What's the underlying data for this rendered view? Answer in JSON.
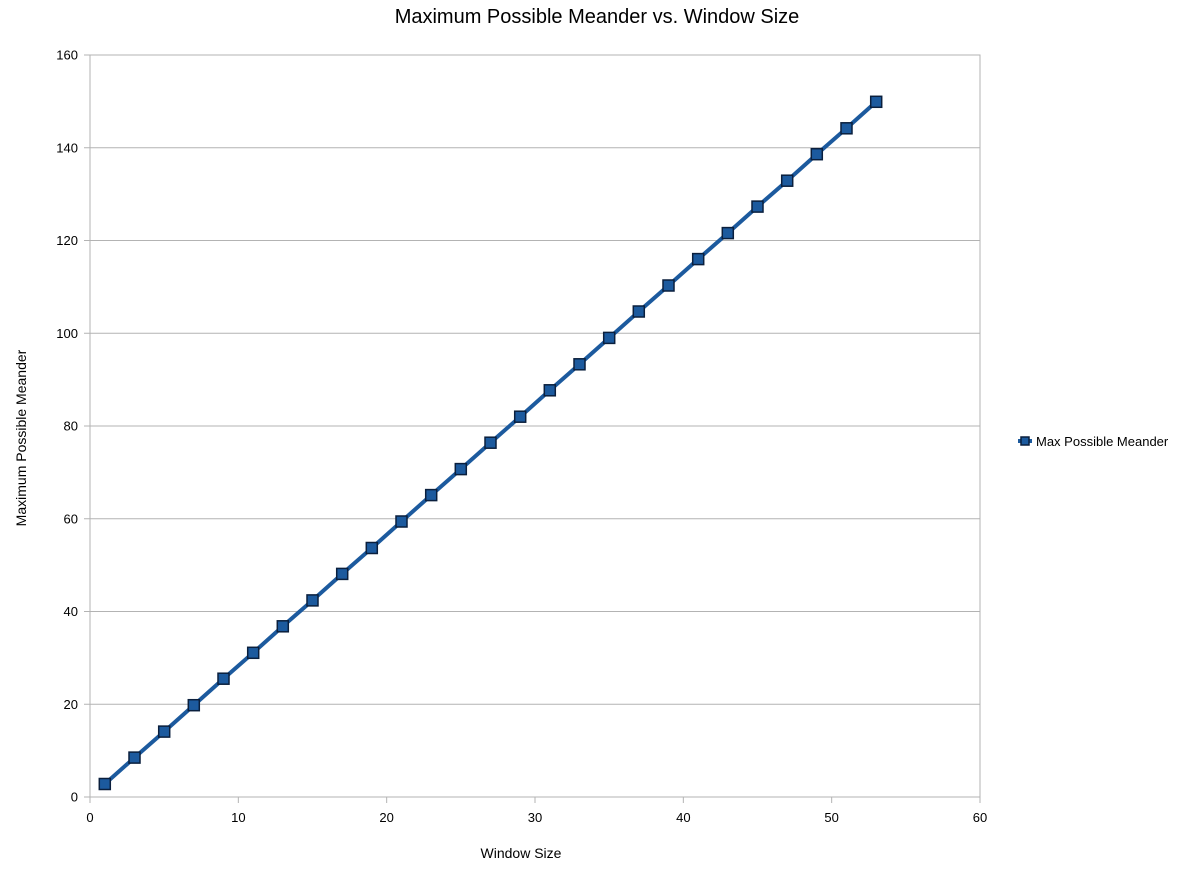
{
  "chart_data": {
    "type": "line",
    "title": "Maximum Possible Meander vs. Window Size",
    "xlabel": "Window Size",
    "ylabel": "Maximum Possible Meander",
    "xlim": [
      0,
      60
    ],
    "ylim": [
      0,
      160
    ],
    "xticks": [
      0,
      10,
      20,
      30,
      40,
      50,
      60
    ],
    "yticks": [
      0,
      20,
      40,
      60,
      80,
      100,
      120,
      140,
      160
    ],
    "grid": {
      "horizontal": true,
      "vertical": false
    },
    "legend_position": "right",
    "series": [
      {
        "name": "Max Possible Meander",
        "color": "#1c5a9e",
        "marker": "square",
        "x": [
          1,
          3,
          5,
          7,
          9,
          11,
          13,
          15,
          17,
          19,
          21,
          23,
          25,
          27,
          29,
          31,
          33,
          35,
          37,
          39,
          41,
          43,
          45,
          47,
          49,
          51,
          53
        ],
        "y": [
          2.8,
          8.5,
          14.1,
          19.8,
          25.5,
          31.1,
          36.8,
          42.4,
          48.1,
          53.7,
          59.4,
          65.1,
          70.7,
          76.4,
          82.0,
          87.7,
          93.3,
          99.0,
          104.7,
          110.3,
          116.0,
          121.6,
          127.3,
          132.9,
          138.6,
          144.2,
          149.9
        ]
      }
    ]
  }
}
